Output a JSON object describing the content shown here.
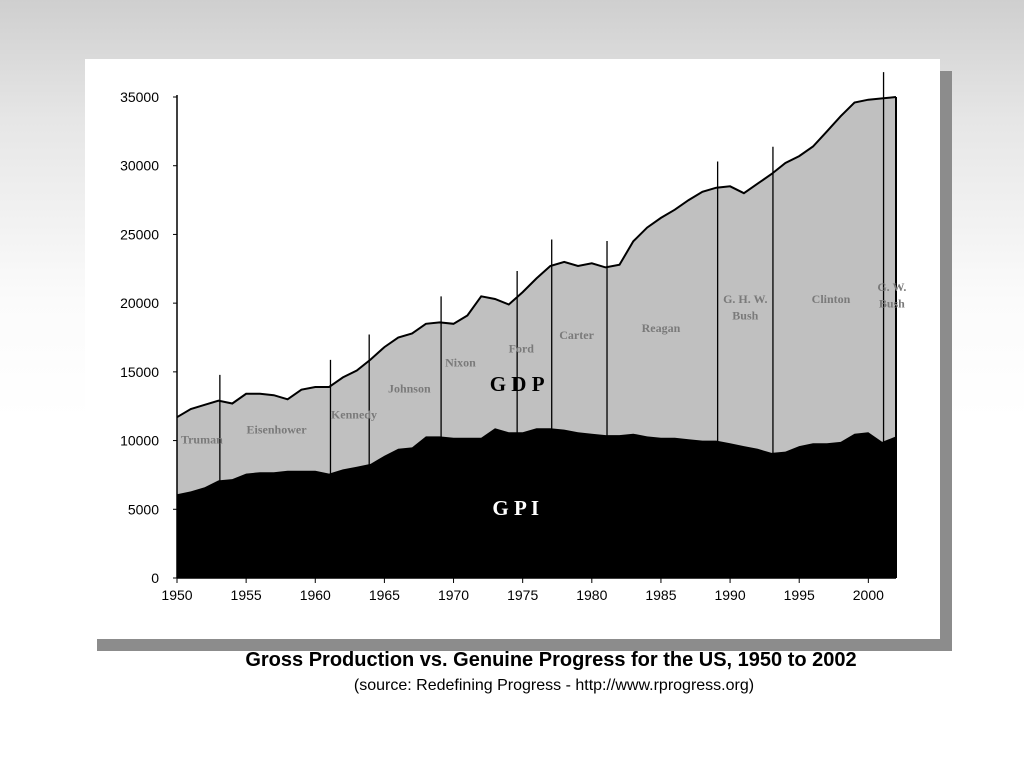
{
  "chart_data": {
    "type": "area",
    "title": "Gross Production vs. Genuine Progress for the US, 1950 to 2002",
    "subtitle": "(source: Redefining Progress -  http://www.rprogress.org)",
    "xlabel": "",
    "ylabel": "",
    "xlim": [
      1950,
      2002
    ],
    "ylim": [
      0,
      35000
    ],
    "x_ticks": [
      1950,
      1955,
      1960,
      1965,
      1970,
      1975,
      1980,
      1985,
      1990,
      1995,
      2000
    ],
    "y_ticks": [
      0,
      5000,
      10000,
      15000,
      20000,
      25000,
      30000,
      35000
    ],
    "grid": false,
    "legend": "none",
    "series": [
      {
        "name": "GDP",
        "display_label": "G D P",
        "color": "#c0c0c0",
        "x": [
          1950,
          1951,
          1952,
          1953,
          1954,
          1955,
          1956,
          1957,
          1958,
          1959,
          1960,
          1961,
          1962,
          1963,
          1964,
          1965,
          1966,
          1967,
          1968,
          1969,
          1970,
          1971,
          1972,
          1973,
          1974,
          1975,
          1976,
          1977,
          1978,
          1979,
          1980,
          1981,
          1982,
          1983,
          1984,
          1985,
          1986,
          1987,
          1988,
          1989,
          1990,
          1991,
          1992,
          1993,
          1994,
          1995,
          1996,
          1997,
          1998,
          1999,
          2000,
          2001,
          2002
        ],
        "values": [
          11700,
          12300,
          12600,
          12900,
          12700,
          13400,
          13400,
          13300,
          13000,
          13700,
          13900,
          13900,
          14600,
          15100,
          15900,
          16800,
          17500,
          17800,
          18500,
          18600,
          18500,
          19100,
          20500,
          20300,
          19900,
          20800,
          21800,
          22700,
          23000,
          22700,
          22900,
          22600,
          22800,
          24500,
          25500,
          26200,
          26800,
          27500,
          28100,
          28400,
          28500,
          28000,
          28700,
          29400,
          30200,
          30700,
          31400,
          32500,
          33600,
          34600,
          34800,
          34900,
          35000
        ]
      },
      {
        "name": "GPI",
        "display_label": "G  P  I",
        "color": "#000000",
        "x": [
          1950,
          1951,
          1952,
          1953,
          1954,
          1955,
          1956,
          1957,
          1958,
          1959,
          1960,
          1961,
          1962,
          1963,
          1964,
          1965,
          1966,
          1967,
          1968,
          1969,
          1970,
          1971,
          1972,
          1973,
          1974,
          1975,
          1976,
          1977,
          1978,
          1979,
          1980,
          1981,
          1982,
          1983,
          1984,
          1985,
          1986,
          1987,
          1988,
          1989,
          1990,
          1991,
          1992,
          1993,
          1994,
          1995,
          1996,
          1997,
          1998,
          1999,
          2000,
          2001,
          2002
        ],
        "values": [
          6100,
          6300,
          6600,
          7100,
          7200,
          7600,
          7700,
          7700,
          7800,
          7800,
          7800,
          7600,
          7900,
          8100,
          8300,
          8900,
          9400,
          9500,
          10300,
          10300,
          10200,
          10200,
          10200,
          10900,
          10600,
          10600,
          10900,
          10900,
          10800,
          10600,
          10500,
          10400,
          10400,
          10500,
          10300,
          10200,
          10200,
          10100,
          10000,
          10000,
          9800,
          9600,
          9400,
          9100,
          9200,
          9600,
          9800,
          9800,
          9900,
          10500,
          10600,
          9900,
          10300
        ]
      }
    ],
    "presidential_markers": [
      1953.1,
      1961.1,
      1963.9,
      1969.1,
      1974.6,
      1977.1,
      1981.1,
      1989.1,
      1993.1,
      2001.1
    ],
    "eras": [
      {
        "label": "Truman",
        "year": 1951.8,
        "value": 9800
      },
      {
        "label": "Eisenhower",
        "year": 1957.2,
        "value": 10500
      },
      {
        "label": "Kennedy",
        "year": 1962.8,
        "value": 11600
      },
      {
        "label": "Johnson",
        "year": 1966.8,
        "value": 13500
      },
      {
        "label": "Nixon",
        "year": 1970.5,
        "value": 15400
      },
      {
        "label": "Ford",
        "year": 1974.9,
        "value": 16400
      },
      {
        "label": "Carter",
        "year": 1978.9,
        "value": 17400
      },
      {
        "label": "Reagan",
        "year": 1985.0,
        "value": 17900
      },
      {
        "label": "G. H. W.",
        "year": 1991.1,
        "value": 20000
      },
      {
        "label": "Bush",
        "year": 1991.1,
        "value": 18800
      },
      {
        "label": "Clinton",
        "year": 1997.3,
        "value": 20000
      },
      {
        "label": "G. W.",
        "year": 2001.7,
        "value": 20900
      },
      {
        "label": "Bush",
        "year": 2001.7,
        "value": 19700
      }
    ]
  }
}
